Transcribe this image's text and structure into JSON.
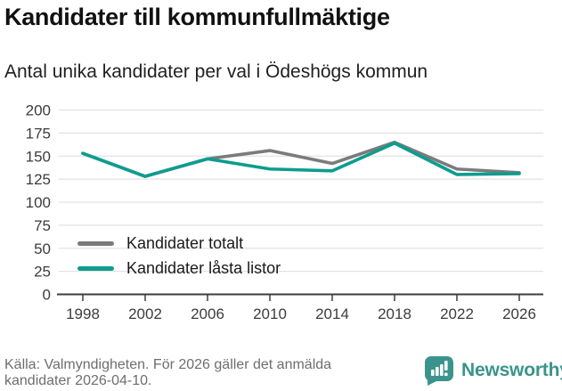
{
  "chart_data": {
    "type": "line",
    "title": "Kandidater till kommunfullmäktige",
    "subtitle": "Antal unika kandidater per val i Ödeshögs kommun",
    "x": [
      "1998",
      "2002",
      "2006",
      "2010",
      "2014",
      "2018",
      "2022",
      "2026"
    ],
    "series": [
      {
        "name": "Kandidater totalt",
        "color": "#7b7b7b",
        "values": [
          153,
          128,
          147,
          156,
          142,
          165,
          136,
          132
        ]
      },
      {
        "name": "Kandidater låsta listor",
        "color": "#0d9c8f",
        "values": [
          153,
          128,
          147,
          136,
          134,
          164,
          130,
          131
        ]
      }
    ],
    "ylim": [
      0,
      200
    ],
    "yticks": [
      0,
      25,
      50,
      75,
      100,
      125,
      150,
      175,
      200
    ],
    "grid": true,
    "legend_position": "inside-left-lower"
  },
  "footer": {
    "source_line1": "Källa: Valmyndigheten. För 2026 gäller det anmälda",
    "source_line2": "kandidater 2026-04-10.",
    "logo": {
      "text": "Newsworthy",
      "icon": "bar-chart-speech-bubble-icon",
      "color": "#3a948c"
    }
  },
  "colors": {
    "accent_teal": "#0d9c8f",
    "series_gray": "#7b7b7b",
    "gridline": "#e2e2e2",
    "axis": "#3c3c3c",
    "text_dark": "#1a1a1a",
    "text_muted": "#6e6e6e"
  }
}
